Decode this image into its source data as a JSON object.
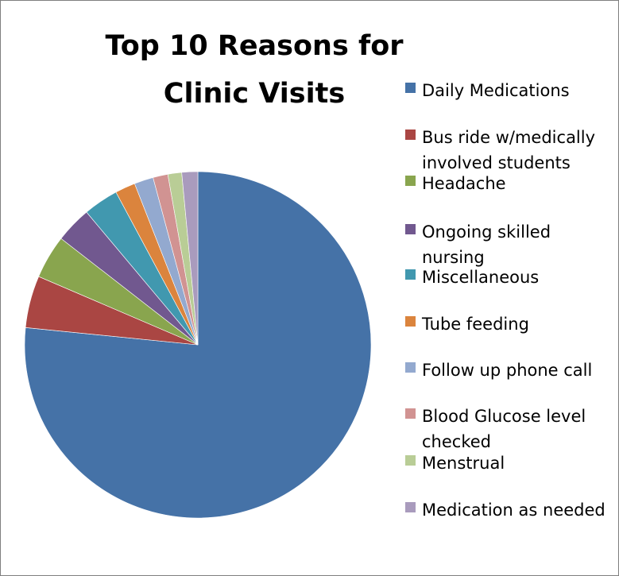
{
  "chart_data": {
    "type": "pie",
    "title": "Top 10 Reasons for Clinic Visits",
    "categories": [
      "Daily Medications",
      "Bus ride w/medically involved students",
      "Headache",
      "Ongoing skilled nursing",
      "Miscellaneous",
      "Tube feeding",
      "Follow up phone call",
      "Blood Glucose level checked",
      "Menstrual",
      "Medication as needed"
    ],
    "values": [
      77.2,
      4.9,
      4.1,
      3.4,
      3.3,
      1.9,
      1.8,
      1.4,
      1.3,
      1.5
    ],
    "colors": [
      "#4572a7",
      "#aa4643",
      "#89a54e",
      "#71588f",
      "#4198af",
      "#db843d",
      "#93a9cf",
      "#d19392",
      "#b9cd96",
      "#a99bbd"
    ],
    "legend_position": "right",
    "start_angle": "top, clockwise"
  }
}
